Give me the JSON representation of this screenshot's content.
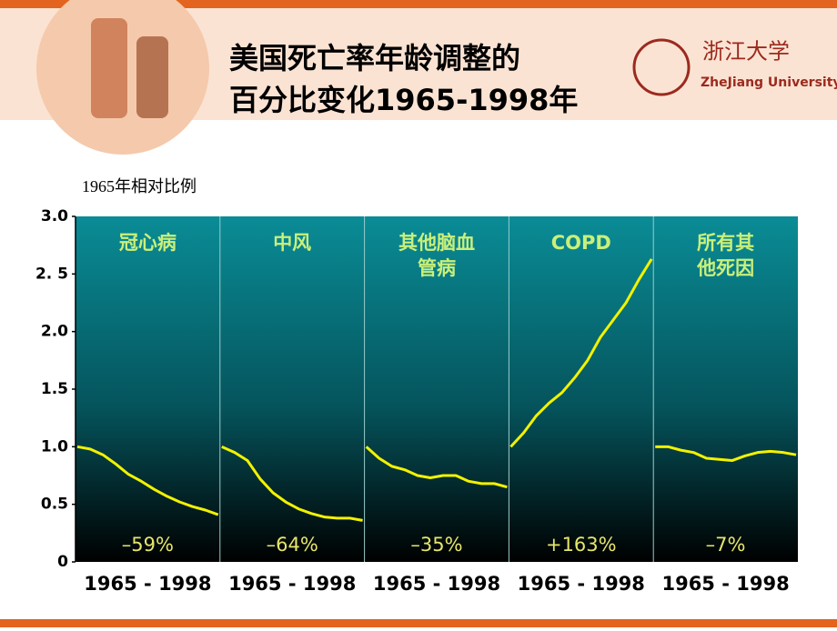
{
  "header": {
    "title_lines": [
      "美国死亡率年龄调整的",
      "百分比变化1965-1998年"
    ],
    "logo_text": "ZheJiang University"
  },
  "chart_data": {
    "type": "line",
    "y_label": "1965年相对比例",
    "ylim": [
      0,
      3
    ],
    "yticks": [
      0,
      0.5,
      {
        "value": 1,
        "label": "1.0"
      },
      1.5,
      {
        "value": 2,
        "label": "2.0"
      },
      {
        "value": 2.5,
        "label": "2. 5"
      },
      {
        "value": 3,
        "label": "3.0"
      }
    ],
    "color": "#f2f200",
    "panels": [
      {
        "name_lines": [
          "冠心病"
        ],
        "x_label": "1965 - 1998",
        "annotation": "–59%",
        "values": [
          1.0,
          0.98,
          0.93,
          0.85,
          0.76,
          0.7,
          0.63,
          0.57,
          0.52,
          0.48,
          0.45,
          0.41
        ]
      },
      {
        "name_lines": [
          "中风"
        ],
        "x_label": "1965 - 1998",
        "annotation": "–64%",
        "values": [
          1.0,
          0.95,
          0.88,
          0.72,
          0.6,
          0.52,
          0.46,
          0.42,
          0.39,
          0.38,
          0.38,
          0.36
        ]
      },
      {
        "name_lines": [
          "其他脑血",
          "管病"
        ],
        "x_label": "1965 - 1998",
        "annotation": "–35%",
        "values": [
          1.0,
          0.9,
          0.83,
          0.8,
          0.75,
          0.73,
          0.75,
          0.75,
          0.7,
          0.68,
          0.68,
          0.65
        ]
      },
      {
        "name_lines": [
          "COPD"
        ],
        "x_label": "1965 - 1998",
        "annotation": "+163%",
        "values": [
          1.0,
          1.12,
          1.27,
          1.38,
          1.47,
          1.6,
          1.75,
          1.95,
          2.1,
          2.25,
          2.45,
          2.63
        ]
      },
      {
        "name_lines": [
          "所有其",
          "他死因"
        ],
        "x_label": "1965 - 1998",
        "annotation": "–7%",
        "values": [
          1.0,
          1.0,
          0.97,
          0.95,
          0.9,
          0.89,
          0.88,
          0.92,
          0.95,
          0.96,
          0.95,
          0.93
        ]
      }
    ]
  }
}
